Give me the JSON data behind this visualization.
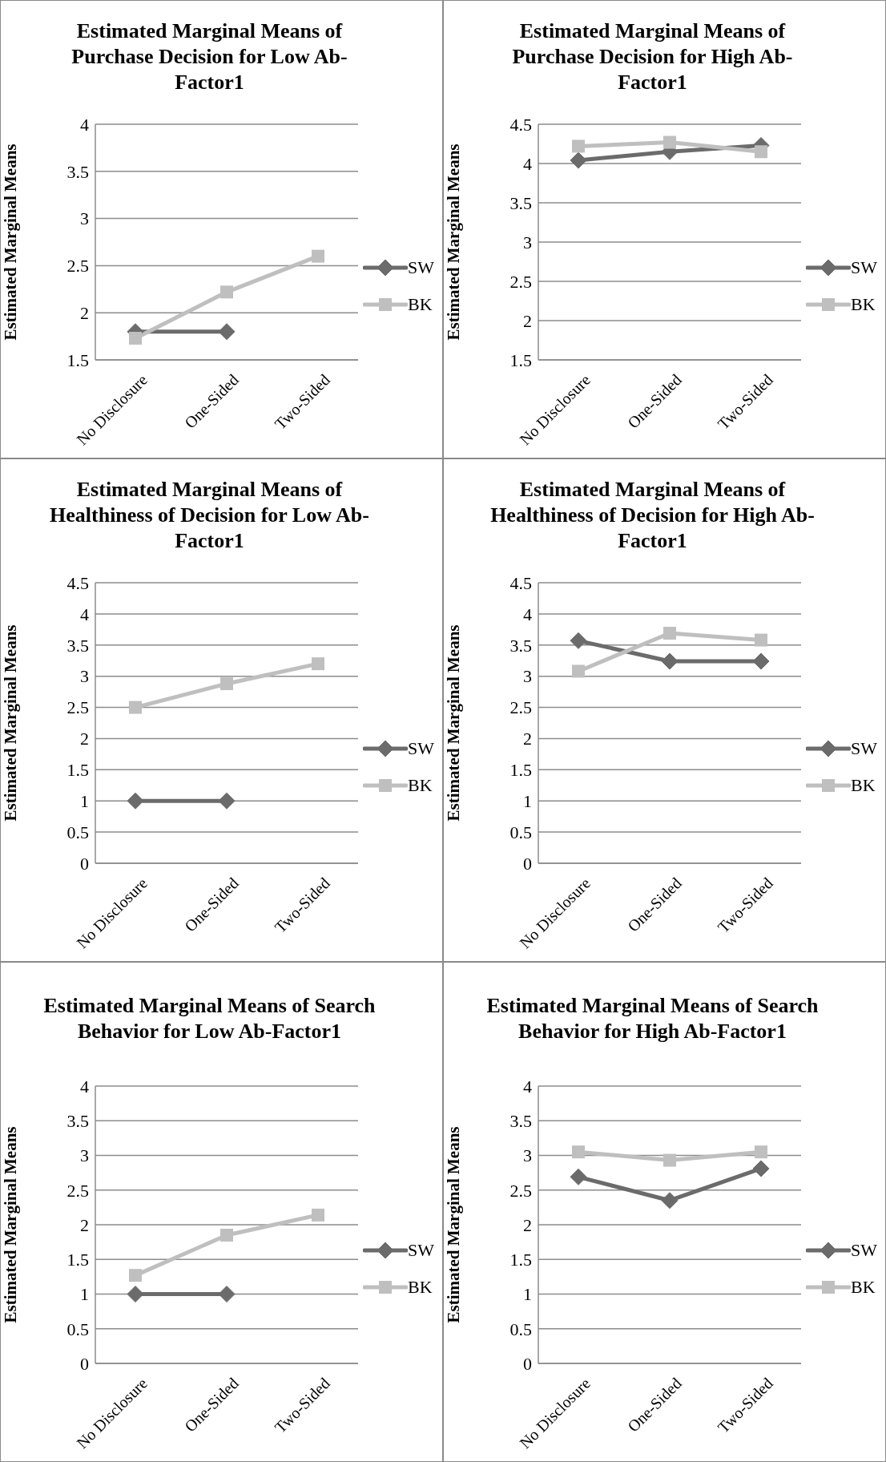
{
  "chart_data": [
    {
      "type": "line",
      "title": "Estimated Marginal Means of Purchase Decision for Low Ab-Factor1",
      "ylabel": "Estimated Marginal Means",
      "categories": [
        "No Disclosure",
        "One-Sided",
        "Two-Sided"
      ],
      "ylim": [
        1.5,
        4
      ],
      "yticks": [
        1.5,
        2,
        2.5,
        3,
        3.5,
        4
      ],
      "grid": "y",
      "legend": "right",
      "series": [
        {
          "name": "SW",
          "color": "#6b6b6b",
          "marker": "diamond",
          "values": [
            1.8,
            1.8,
            null
          ]
        },
        {
          "name": "BK",
          "color": "#bfbfbf",
          "marker": "square",
          "values": [
            1.73,
            2.22,
            2.6
          ]
        }
      ]
    },
    {
      "type": "line",
      "title": "Estimated Marginal Means of Purchase Decision for High Ab-Factor1",
      "ylabel": "Estimated Marginal Means",
      "categories": [
        "No Disclosure",
        "One-Sided",
        "Two-Sided"
      ],
      "ylim": [
        1.5,
        4.5
      ],
      "yticks": [
        1.5,
        2,
        2.5,
        3,
        3.5,
        4,
        4.5
      ],
      "grid": "y",
      "legend": "right",
      "series": [
        {
          "name": "SW",
          "color": "#6b6b6b",
          "marker": "diamond",
          "values": [
            4.04,
            4.15,
            4.23
          ]
        },
        {
          "name": "BK",
          "color": "#bfbfbf",
          "marker": "square",
          "values": [
            4.22,
            4.27,
            4.15
          ]
        }
      ]
    },
    {
      "type": "line",
      "title": "Estimated Marginal Means of Healthiness of Decision for Low Ab-Factor1",
      "ylabel": "Estimated Marginal Means",
      "categories": [
        "No Disclosure",
        "One-Sided",
        "Two-Sided"
      ],
      "ylim": [
        0,
        4.5
      ],
      "yticks": [
        0,
        0.5,
        1,
        1.5,
        2,
        2.5,
        3,
        3.5,
        4,
        4.5
      ],
      "grid": "y",
      "legend": "right",
      "series": [
        {
          "name": "SW",
          "color": "#6b6b6b",
          "marker": "diamond",
          "values": [
            1,
            1,
            null
          ]
        },
        {
          "name": "BK",
          "color": "#bfbfbf",
          "marker": "square",
          "values": [
            2.5,
            2.88,
            3.2
          ]
        }
      ]
    },
    {
      "type": "line",
      "title": "Estimated Marginal Means of Healthiness of Decision for High Ab-Factor1",
      "ylabel": "Estimated Marginal Means",
      "categories": [
        "No Disclosure",
        "One-Sided",
        "Two-Sided"
      ],
      "ylim": [
        0,
        4.5
      ],
      "yticks": [
        0,
        0.5,
        1,
        1.5,
        2,
        2.5,
        3,
        3.5,
        4,
        4.5
      ],
      "grid": "y",
      "legend": "right",
      "series": [
        {
          "name": "SW",
          "color": "#6b6b6b",
          "marker": "diamond",
          "values": [
            3.57,
            3.24,
            3.24
          ]
        },
        {
          "name": "BK",
          "color": "#bfbfbf",
          "marker": "square",
          "values": [
            3.08,
            3.69,
            3.58
          ]
        }
      ]
    },
    {
      "type": "line",
      "title": "Estimated Marginal Means of Search Behavior for Low Ab-Factor1",
      "ylabel": "Estimated Marginal Means",
      "categories": [
        "No Disclosure",
        "One-Sided",
        "Two-Sided"
      ],
      "ylim": [
        0,
        4
      ],
      "yticks": [
        0,
        0.5,
        1,
        1.5,
        2,
        2.5,
        3,
        3.5,
        4
      ],
      "grid": "y",
      "legend": "right",
      "series": [
        {
          "name": "SW",
          "color": "#6b6b6b",
          "marker": "diamond",
          "values": [
            1,
            1,
            null
          ]
        },
        {
          "name": "BK",
          "color": "#bfbfbf",
          "marker": "square",
          "values": [
            1.27,
            1.85,
            2.14
          ]
        }
      ]
    },
    {
      "type": "line",
      "title": "Estimated Marginal Means of Search Behavior for High Ab-Factor1",
      "ylabel": "Estimated Marginal Means",
      "categories": [
        "No Disclosure",
        "One-Sided",
        "Two-Sided"
      ],
      "ylim": [
        0,
        4
      ],
      "yticks": [
        0,
        0.5,
        1,
        1.5,
        2,
        2.5,
        3,
        3.5,
        4
      ],
      "grid": "y",
      "legend": "right",
      "series": [
        {
          "name": "SW",
          "color": "#6b6b6b",
          "marker": "diamond",
          "values": [
            2.69,
            2.35,
            2.81
          ]
        },
        {
          "name": "BK",
          "color": "#bfbfbf",
          "marker": "square",
          "values": [
            3.05,
            2.93,
            3.05
          ]
        }
      ]
    }
  ]
}
